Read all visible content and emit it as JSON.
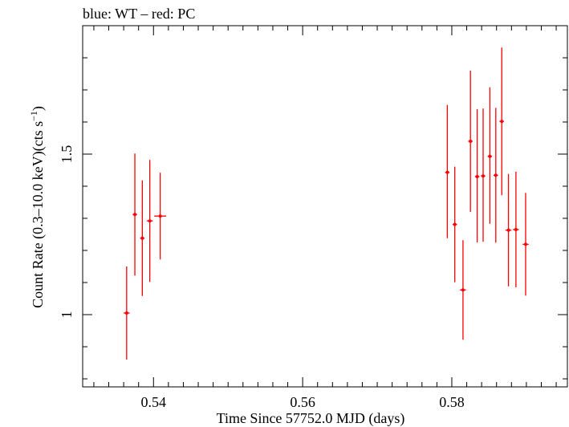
{
  "chart_data": {
    "type": "scatter",
    "title": "blue: WT – red: PC",
    "xlabel": "Time Since 57752.0 MJD (days)",
    "ylabel_main": "Count Rate (0.3–10.0 keV)(cts s",
    "ylabel_sup": "−1",
    "ylabel_close": ")",
    "xlim": [
      0.5305,
      0.5955
    ],
    "ylim": [
      0.775,
      1.9
    ],
    "x_ticks": [
      {
        "value": 0.54,
        "label": "0.54"
      },
      {
        "value": 0.56,
        "label": "0.56"
      },
      {
        "value": 0.58,
        "label": "0.58"
      }
    ],
    "x_minor_step": 0.002,
    "y_ticks": [
      {
        "value": 1.0,
        "label": "1"
      },
      {
        "value": 1.5,
        "label": "1.5"
      }
    ],
    "y_minor_step": 0.1,
    "grid": false,
    "series": [
      {
        "name": "PC",
        "color": "#ff0000",
        "points": [
          {
            "x": 0.5364,
            "xerr": 0.0004,
            "y": 1.005,
            "yerr_lo": 0.145,
            "yerr_hi": 0.145
          },
          {
            "x": 0.5375,
            "xerr": 0.0003,
            "y": 1.312,
            "yerr_lo": 0.19,
            "yerr_hi": 0.19
          },
          {
            "x": 0.5385,
            "xerr": 0.0003,
            "y": 1.238,
            "yerr_lo": 0.18,
            "yerr_hi": 0.18
          },
          {
            "x": 0.5395,
            "xerr": 0.0004,
            "y": 1.292,
            "yerr_lo": 0.19,
            "yerr_hi": 0.19
          },
          {
            "x": 0.5409,
            "xerr": 0.0008,
            "y": 1.307,
            "yerr_lo": 0.135,
            "yerr_hi": 0.135
          },
          {
            "x": 0.5794,
            "xerr": 0.0003,
            "y": 1.443,
            "yerr_lo": 0.205,
            "yerr_hi": 0.21
          },
          {
            "x": 0.5804,
            "xerr": 0.0003,
            "y": 1.281,
            "yerr_lo": 0.18,
            "yerr_hi": 0.18
          },
          {
            "x": 0.5815,
            "xerr": 0.0004,
            "y": 1.077,
            "yerr_lo": 0.155,
            "yerr_hi": 0.155
          },
          {
            "x": 0.5825,
            "xerr": 0.0003,
            "y": 1.54,
            "yerr_lo": 0.22,
            "yerr_hi": 0.22
          },
          {
            "x": 0.5834,
            "xerr": 0.0003,
            "y": 1.43,
            "yerr_lo": 0.205,
            "yerr_hi": 0.21
          },
          {
            "x": 0.5842,
            "xerr": 0.0003,
            "y": 1.432,
            "yerr_lo": 0.205,
            "yerr_hi": 0.21
          },
          {
            "x": 0.5851,
            "xerr": 0.0003,
            "y": 1.493,
            "yerr_lo": 0.21,
            "yerr_hi": 0.215
          },
          {
            "x": 0.5859,
            "xerr": 0.0003,
            "y": 1.434,
            "yerr_lo": 0.21,
            "yerr_hi": 0.21
          },
          {
            "x": 0.5867,
            "xerr": 0.0003,
            "y": 1.602,
            "yerr_lo": 0.23,
            "yerr_hi": 0.23
          },
          {
            "x": 0.5876,
            "xerr": 0.0004,
            "y": 1.263,
            "yerr_lo": 0.175,
            "yerr_hi": 0.175
          },
          {
            "x": 0.5886,
            "xerr": 0.0004,
            "y": 1.265,
            "yerr_lo": 0.18,
            "yerr_hi": 0.18
          },
          {
            "x": 0.5899,
            "xerr": 0.0004,
            "y": 1.219,
            "yerr_lo": 0.16,
            "yerr_hi": 0.16
          }
        ]
      }
    ]
  }
}
